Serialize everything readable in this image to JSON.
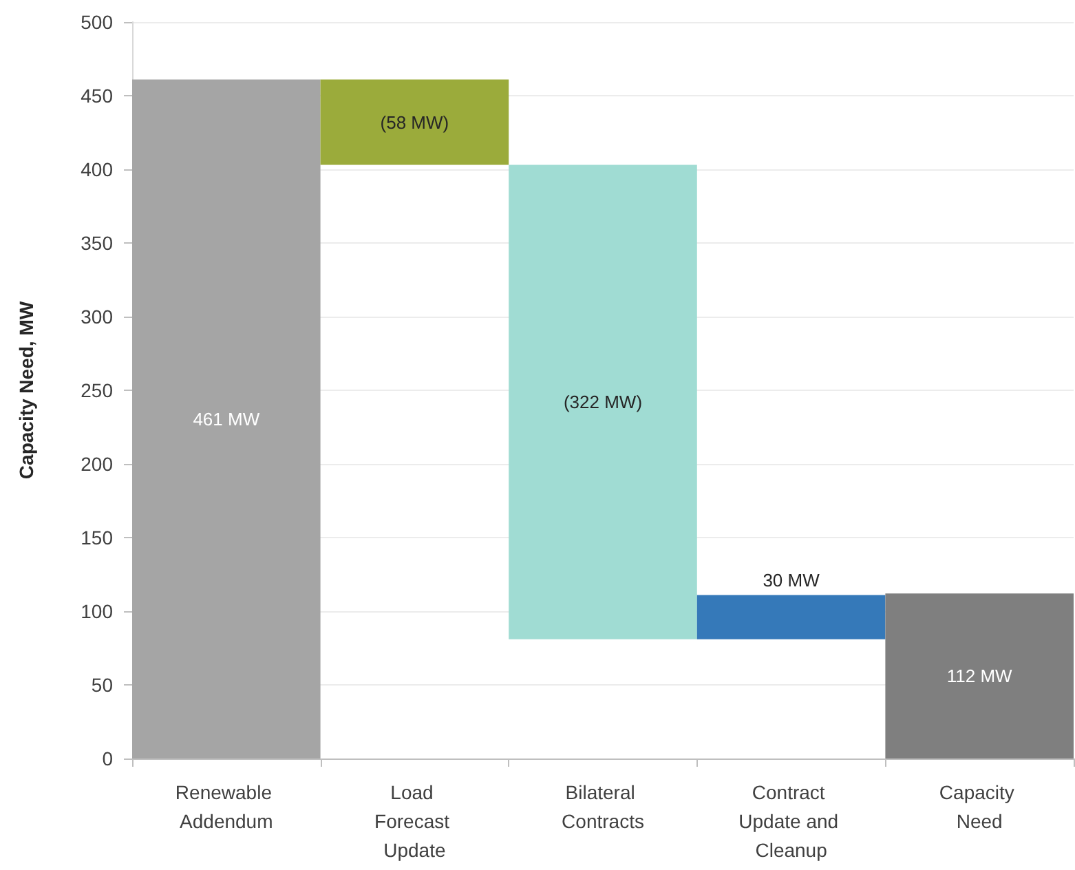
{
  "chart_data": {
    "type": "bar",
    "ylabel": "Capacity Need, MW",
    "categories": [
      "Renewable Addendum",
      "Load Forecast Update",
      "Bilateral Contracts",
      "Contract Update and Cleanup",
      "Capacity Need"
    ],
    "values": [
      461,
      -58,
      -322,
      30,
      112
    ],
    "base": [
      0,
      461,
      403,
      81,
      0
    ],
    "colors": [
      "#a5a5a5",
      "#9bab3b",
      "#a0dcd3",
      "#3579b9",
      "#7f7f7f"
    ],
    "value_labels": [
      "461 MW",
      "(58 MW)",
      "(322 MW)",
      "30 MW",
      "112 MW"
    ],
    "ylim": [
      0,
      500
    ],
    "yticks": [
      0,
      50,
      100,
      150,
      200,
      250,
      300,
      350,
      400,
      450,
      500
    ],
    "grid": "y"
  }
}
